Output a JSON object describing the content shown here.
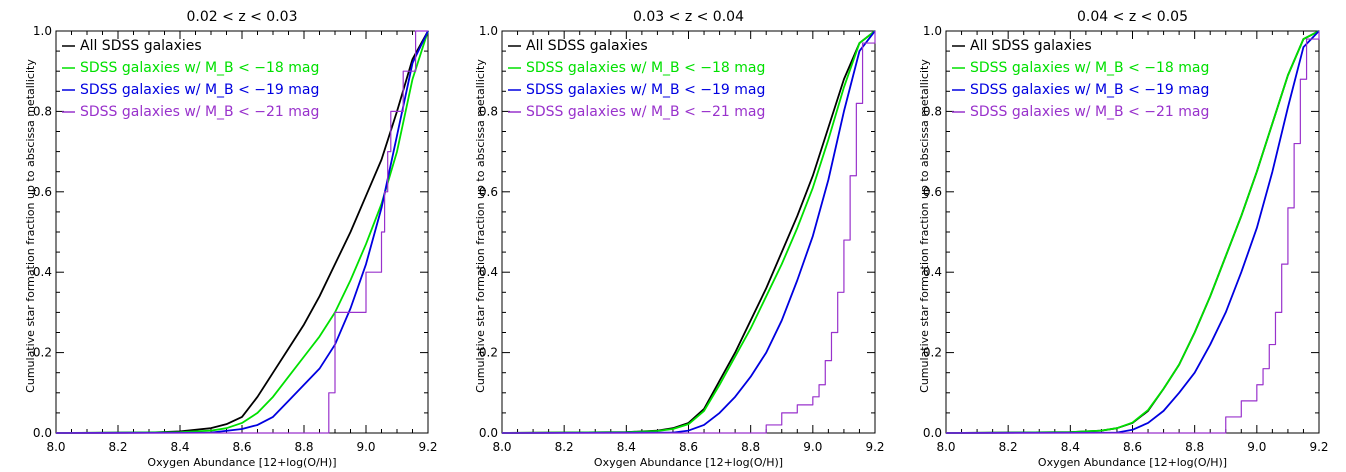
{
  "figure": {
    "ylabel": "Cumulative star formation fraction up to abscissa metallicity",
    "xlabel": "Oxygen Abundance [12+log(O/H)]"
  },
  "chart_data": [
    {
      "type": "line",
      "title": "0.02  <  z  <  0.03",
      "xlabel": "Oxygen Abundance [12+log(O/H)]",
      "ylabel": "Cumulative star formation fraction up to abscissa metallicity",
      "xlim": [
        8.0,
        9.2
      ],
      "ylim": [
        0.0,
        1.0
      ],
      "xticks": [
        "8.0",
        "8.2",
        "8.4",
        "8.6",
        "8.8",
        "9.0",
        "9.2"
      ],
      "yticks": [
        "0.0",
        "0.2",
        "0.4",
        "0.6",
        "0.8",
        "1.0"
      ],
      "legend_position": "top-left",
      "grid": false,
      "series": [
        {
          "name": "All SDSS galaxies",
          "color": "#000000",
          "step": false,
          "x": [
            8.0,
            8.3,
            8.4,
            8.5,
            8.55,
            8.6,
            8.65,
            8.7,
            8.75,
            8.8,
            8.85,
            8.9,
            8.95,
            9.0,
            9.05,
            9.1,
            9.15,
            9.2
          ],
          "y": [
            0.0,
            0.001,
            0.004,
            0.012,
            0.022,
            0.04,
            0.09,
            0.15,
            0.21,
            0.27,
            0.34,
            0.42,
            0.5,
            0.59,
            0.68,
            0.8,
            0.93,
            1.0
          ]
        },
        {
          "name": "SDSS galaxies w/ M_B < −18 mag",
          "color": "#00e000",
          "step": false,
          "x": [
            8.0,
            8.4,
            8.5,
            8.55,
            8.6,
            8.65,
            8.7,
            8.75,
            8.8,
            8.85,
            8.9,
            8.95,
            9.0,
            9.05,
            9.1,
            9.15,
            9.2
          ],
          "y": [
            0.0,
            0.002,
            0.006,
            0.012,
            0.025,
            0.05,
            0.09,
            0.14,
            0.19,
            0.24,
            0.3,
            0.38,
            0.47,
            0.57,
            0.7,
            0.88,
            1.0
          ]
        },
        {
          "name": "SDSS galaxies w/ M_B < −19 mag",
          "color": "#0000e0",
          "step": false,
          "x": [
            8.0,
            8.5,
            8.6,
            8.65,
            8.7,
            8.75,
            8.8,
            8.85,
            8.9,
            8.95,
            9.0,
            9.05,
            9.1,
            9.15,
            9.2
          ],
          "y": [
            0.0,
            0.001,
            0.01,
            0.02,
            0.04,
            0.08,
            0.12,
            0.16,
            0.22,
            0.31,
            0.42,
            0.56,
            0.74,
            0.92,
            1.0
          ]
        },
        {
          "name": "SDSS galaxies w/ M_B < −21 mag",
          "color": "#9932cc",
          "step": true,
          "x": [
            8.0,
            8.87,
            8.88,
            8.9,
            8.95,
            9.0,
            9.05,
            9.06,
            9.07,
            9.08,
            9.1,
            9.12,
            9.14,
            9.16,
            9.2
          ],
          "y": [
            0.0,
            0.0,
            0.1,
            0.3,
            0.3,
            0.4,
            0.5,
            0.6,
            0.7,
            0.8,
            0.8,
            0.9,
            0.9,
            1.0,
            1.0
          ]
        }
      ]
    },
    {
      "type": "line",
      "title": "0.03  <  z  <  0.04",
      "xlabel": "Oxygen Abundance [12+log(O/H)]",
      "ylabel": "Cumulative star formation fraction up to abscissa metallicity",
      "xlim": [
        8.0,
        9.2
      ],
      "ylim": [
        0.0,
        1.0
      ],
      "xticks": [
        "8.0",
        "8.2",
        "8.4",
        "8.6",
        "8.8",
        "9.0",
        "9.2"
      ],
      "yticks": [
        "0.0",
        "0.2",
        "0.4",
        "0.6",
        "0.8",
        "1.0"
      ],
      "legend_position": "top-left",
      "grid": false,
      "series": [
        {
          "name": "All SDSS galaxies",
          "color": "#000000",
          "step": false,
          "x": [
            8.0,
            8.4,
            8.5,
            8.55,
            8.6,
            8.65,
            8.7,
            8.75,
            8.8,
            8.85,
            8.9,
            8.95,
            9.0,
            9.05,
            9.1,
            9.15,
            9.2
          ],
          "y": [
            0.0,
            0.002,
            0.006,
            0.012,
            0.025,
            0.06,
            0.13,
            0.2,
            0.28,
            0.36,
            0.45,
            0.54,
            0.64,
            0.76,
            0.88,
            0.97,
            1.0
          ]
        },
        {
          "name": "SDSS galaxies w/ M_B < −18 mag",
          "color": "#00e000",
          "step": false,
          "x": [
            8.0,
            8.4,
            8.5,
            8.55,
            8.6,
            8.65,
            8.7,
            8.75,
            8.8,
            8.85,
            8.9,
            8.95,
            9.0,
            9.05,
            9.1,
            9.15,
            9.2
          ],
          "y": [
            0.0,
            0.002,
            0.005,
            0.01,
            0.022,
            0.055,
            0.12,
            0.19,
            0.26,
            0.34,
            0.42,
            0.51,
            0.61,
            0.73,
            0.86,
            0.97,
            1.0
          ]
        },
        {
          "name": "SDSS galaxies w/ M_B < −19 mag",
          "color": "#0000e0",
          "step": false,
          "x": [
            8.0,
            8.55,
            8.6,
            8.65,
            8.7,
            8.75,
            8.8,
            8.85,
            8.9,
            8.95,
            9.0,
            9.05,
            9.1,
            9.15,
            9.2
          ],
          "y": [
            0.0,
            0.001,
            0.006,
            0.02,
            0.05,
            0.09,
            0.14,
            0.2,
            0.28,
            0.38,
            0.49,
            0.63,
            0.8,
            0.95,
            1.0
          ]
        },
        {
          "name": "SDSS galaxies w/ M_B < −21 mag",
          "color": "#9932cc",
          "step": true,
          "x": [
            8.0,
            8.8,
            8.85,
            8.9,
            8.95,
            9.0,
            9.02,
            9.04,
            9.06,
            9.08,
            9.1,
            9.12,
            9.14,
            9.16,
            9.2
          ],
          "y": [
            0.0,
            0.0,
            0.02,
            0.05,
            0.07,
            0.09,
            0.12,
            0.18,
            0.25,
            0.35,
            0.48,
            0.64,
            0.82,
            0.97,
            1.0
          ]
        }
      ]
    },
    {
      "type": "line",
      "title": "0.04  <  z  <  0.05",
      "xlabel": "Oxygen Abundance [12+log(O/H)]",
      "ylabel": "Cumulative star formation fraction up to abscissa metallicity",
      "xlim": [
        8.0,
        9.2
      ],
      "ylim": [
        0.0,
        1.0
      ],
      "xticks": [
        "8.0",
        "8.2",
        "8.4",
        "8.6",
        "8.8",
        "9.0",
        "9.2"
      ],
      "yticks": [
        "0.0",
        "0.2",
        "0.4",
        "0.6",
        "0.8",
        "1.0"
      ],
      "legend_position": "top-left",
      "grid": false,
      "series": [
        {
          "name": "All SDSS galaxies",
          "color": "#000000",
          "step": false,
          "x": [
            8.0,
            8.4,
            8.5,
            8.55,
            8.6,
            8.65,
            8.7,
            8.75,
            8.8,
            8.85,
            8.9,
            8.95,
            9.0,
            9.05,
            9.1,
            9.15,
            9.2
          ],
          "y": [
            0.0,
            0.002,
            0.006,
            0.012,
            0.025,
            0.055,
            0.11,
            0.17,
            0.25,
            0.34,
            0.44,
            0.54,
            0.65,
            0.77,
            0.89,
            0.98,
            1.0
          ]
        },
        {
          "name": "SDSS galaxies w/ M_B < −18 mag",
          "color": "#00e000",
          "step": false,
          "x": [
            8.0,
            8.4,
            8.5,
            8.55,
            8.6,
            8.65,
            8.7,
            8.75,
            8.8,
            8.85,
            8.9,
            8.95,
            9.0,
            9.05,
            9.1,
            9.15,
            9.2
          ],
          "y": [
            0.0,
            0.002,
            0.006,
            0.012,
            0.026,
            0.057,
            0.11,
            0.17,
            0.25,
            0.34,
            0.44,
            0.54,
            0.65,
            0.77,
            0.89,
            0.98,
            1.0
          ]
        },
        {
          "name": "SDSS galaxies w/ M_B < −19 mag",
          "color": "#0000e0",
          "step": false,
          "x": [
            8.0,
            8.55,
            8.6,
            8.65,
            8.7,
            8.75,
            8.8,
            8.85,
            8.9,
            8.95,
            9.0,
            9.05,
            9.1,
            9.15,
            9.2
          ],
          "y": [
            0.0,
            0.001,
            0.008,
            0.025,
            0.055,
            0.1,
            0.15,
            0.22,
            0.3,
            0.4,
            0.51,
            0.65,
            0.81,
            0.96,
            1.0
          ]
        },
        {
          "name": "SDSS galaxies w/ M_B < −21 mag",
          "color": "#9932cc",
          "step": true,
          "x": [
            8.0,
            8.85,
            8.9,
            8.95,
            9.0,
            9.02,
            9.04,
            9.06,
            9.08,
            9.1,
            9.12,
            9.14,
            9.16,
            9.2
          ],
          "y": [
            0.0,
            0.0,
            0.04,
            0.08,
            0.12,
            0.16,
            0.22,
            0.3,
            0.42,
            0.56,
            0.72,
            0.88,
            0.98,
            1.0
          ]
        }
      ]
    }
  ]
}
